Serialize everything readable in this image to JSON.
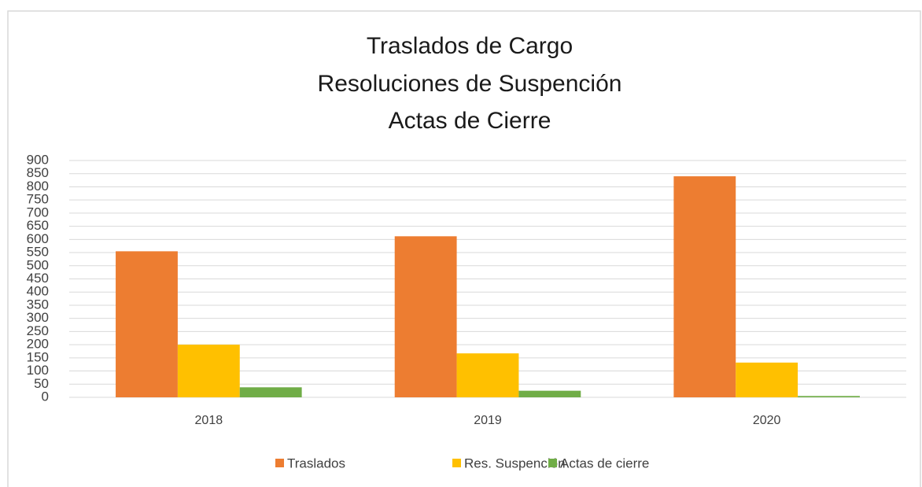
{
  "chart_data": {
    "type": "bar",
    "title": [
      "Traslados de Cargo",
      "Resoluciones de Suspención",
      "Actas de Cierre"
    ],
    "categories": [
      "2018",
      "2019",
      "2020"
    ],
    "series": [
      {
        "name": "Traslados",
        "color": "#ed7d31",
        "values": [
          555,
          612,
          840
        ]
      },
      {
        "name": "Res. Suspención",
        "color": "#ffc000",
        "values": [
          200,
          167,
          132
        ]
      },
      {
        "name": "Actas de cierre",
        "color": "#70ad47",
        "values": [
          38,
          25,
          5
        ]
      }
    ],
    "ylim": [
      0,
      900
    ],
    "yticks": [
      0,
      50,
      100,
      150,
      200,
      250,
      300,
      350,
      400,
      450,
      500,
      550,
      600,
      650,
      700,
      750,
      800,
      850,
      900
    ],
    "grid": true,
    "legend": "bottom"
  }
}
